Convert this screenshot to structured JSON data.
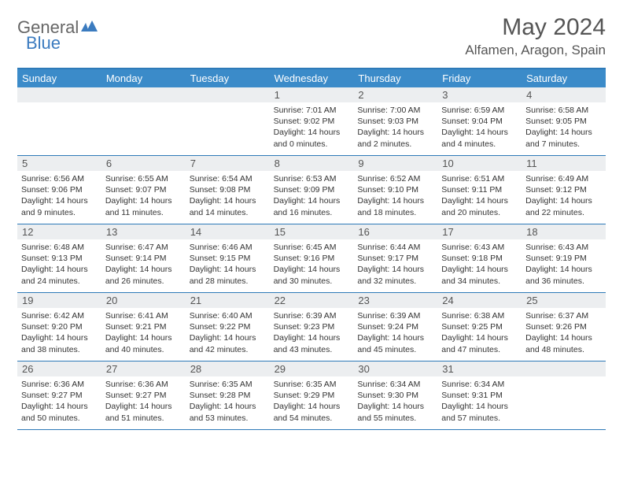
{
  "logo": {
    "part1": "General",
    "part2": "Blue"
  },
  "title": "May 2024",
  "location": "Alfamen, Aragon, Spain",
  "day_names": [
    "Sunday",
    "Monday",
    "Tuesday",
    "Wednesday",
    "Thursday",
    "Friday",
    "Saturday"
  ],
  "colors": {
    "header_bg": "#3b8bc9",
    "border": "#2e7ab8",
    "daynum_bg": "#eceef0",
    "text": "#333333",
    "title_text": "#555555",
    "logo_blue": "#3b7bbf"
  },
  "typography": {
    "title_fontsize": 30,
    "location_fontsize": 17,
    "dayheader_fontsize": 13,
    "daynum_fontsize": 13,
    "body_fontsize": 10.5
  },
  "layout": {
    "cols": 7,
    "rows": 5,
    "blank_leading": 3
  },
  "days": [
    {
      "n": "1",
      "sunrise": "7:01 AM",
      "sunset": "9:02 PM",
      "daylight": "14 hours and 0 minutes."
    },
    {
      "n": "2",
      "sunrise": "7:00 AM",
      "sunset": "9:03 PM",
      "daylight": "14 hours and 2 minutes."
    },
    {
      "n": "3",
      "sunrise": "6:59 AM",
      "sunset": "9:04 PM",
      "daylight": "14 hours and 4 minutes."
    },
    {
      "n": "4",
      "sunrise": "6:58 AM",
      "sunset": "9:05 PM",
      "daylight": "14 hours and 7 minutes."
    },
    {
      "n": "5",
      "sunrise": "6:56 AM",
      "sunset": "9:06 PM",
      "daylight": "14 hours and 9 minutes."
    },
    {
      "n": "6",
      "sunrise": "6:55 AM",
      "sunset": "9:07 PM",
      "daylight": "14 hours and 11 minutes."
    },
    {
      "n": "7",
      "sunrise": "6:54 AM",
      "sunset": "9:08 PM",
      "daylight": "14 hours and 14 minutes."
    },
    {
      "n": "8",
      "sunrise": "6:53 AM",
      "sunset": "9:09 PM",
      "daylight": "14 hours and 16 minutes."
    },
    {
      "n": "9",
      "sunrise": "6:52 AM",
      "sunset": "9:10 PM",
      "daylight": "14 hours and 18 minutes."
    },
    {
      "n": "10",
      "sunrise": "6:51 AM",
      "sunset": "9:11 PM",
      "daylight": "14 hours and 20 minutes."
    },
    {
      "n": "11",
      "sunrise": "6:49 AM",
      "sunset": "9:12 PM",
      "daylight": "14 hours and 22 minutes."
    },
    {
      "n": "12",
      "sunrise": "6:48 AM",
      "sunset": "9:13 PM",
      "daylight": "14 hours and 24 minutes."
    },
    {
      "n": "13",
      "sunrise": "6:47 AM",
      "sunset": "9:14 PM",
      "daylight": "14 hours and 26 minutes."
    },
    {
      "n": "14",
      "sunrise": "6:46 AM",
      "sunset": "9:15 PM",
      "daylight": "14 hours and 28 minutes."
    },
    {
      "n": "15",
      "sunrise": "6:45 AM",
      "sunset": "9:16 PM",
      "daylight": "14 hours and 30 minutes."
    },
    {
      "n": "16",
      "sunrise": "6:44 AM",
      "sunset": "9:17 PM",
      "daylight": "14 hours and 32 minutes."
    },
    {
      "n": "17",
      "sunrise": "6:43 AM",
      "sunset": "9:18 PM",
      "daylight": "14 hours and 34 minutes."
    },
    {
      "n": "18",
      "sunrise": "6:43 AM",
      "sunset": "9:19 PM",
      "daylight": "14 hours and 36 minutes."
    },
    {
      "n": "19",
      "sunrise": "6:42 AM",
      "sunset": "9:20 PM",
      "daylight": "14 hours and 38 minutes."
    },
    {
      "n": "20",
      "sunrise": "6:41 AM",
      "sunset": "9:21 PM",
      "daylight": "14 hours and 40 minutes."
    },
    {
      "n": "21",
      "sunrise": "6:40 AM",
      "sunset": "9:22 PM",
      "daylight": "14 hours and 42 minutes."
    },
    {
      "n": "22",
      "sunrise": "6:39 AM",
      "sunset": "9:23 PM",
      "daylight": "14 hours and 43 minutes."
    },
    {
      "n": "23",
      "sunrise": "6:39 AM",
      "sunset": "9:24 PM",
      "daylight": "14 hours and 45 minutes."
    },
    {
      "n": "24",
      "sunrise": "6:38 AM",
      "sunset": "9:25 PM",
      "daylight": "14 hours and 47 minutes."
    },
    {
      "n": "25",
      "sunrise": "6:37 AM",
      "sunset": "9:26 PM",
      "daylight": "14 hours and 48 minutes."
    },
    {
      "n": "26",
      "sunrise": "6:36 AM",
      "sunset": "9:27 PM",
      "daylight": "14 hours and 50 minutes."
    },
    {
      "n": "27",
      "sunrise": "6:36 AM",
      "sunset": "9:27 PM",
      "daylight": "14 hours and 51 minutes."
    },
    {
      "n": "28",
      "sunrise": "6:35 AM",
      "sunset": "9:28 PM",
      "daylight": "14 hours and 53 minutes."
    },
    {
      "n": "29",
      "sunrise": "6:35 AM",
      "sunset": "9:29 PM",
      "daylight": "14 hours and 54 minutes."
    },
    {
      "n": "30",
      "sunrise": "6:34 AM",
      "sunset": "9:30 PM",
      "daylight": "14 hours and 55 minutes."
    },
    {
      "n": "31",
      "sunrise": "6:34 AM",
      "sunset": "9:31 PM",
      "daylight": "14 hours and 57 minutes."
    }
  ]
}
